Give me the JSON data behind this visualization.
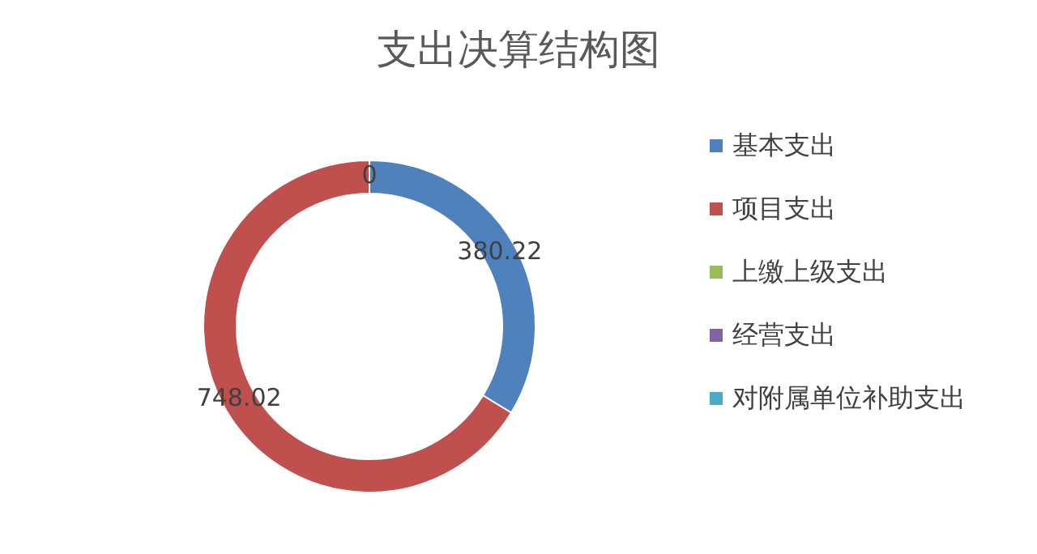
{
  "chart_data": {
    "type": "donut",
    "title": "支出决算结构图",
    "categories": [
      "基本支出",
      "项目支出",
      "上缴上级支出",
      "经营支出",
      "对附属单位补助支出"
    ],
    "values": [
      380.22,
      748.02,
      0,
      0,
      0
    ],
    "colors": [
      "#4f81bd",
      "#c0504d",
      "#9bbb59",
      "#8064a2",
      "#4bacc6"
    ],
    "value_labels": [
      "380.22",
      "748.02",
      "0",
      null,
      null
    ],
    "legend": "right"
  }
}
